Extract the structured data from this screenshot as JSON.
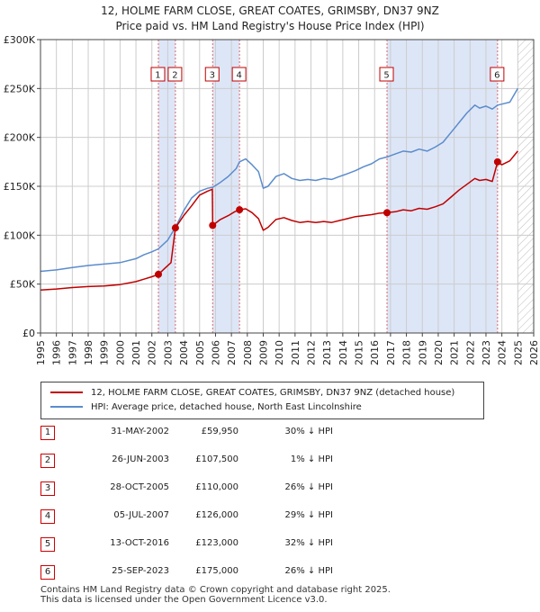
{
  "title": {
    "line1": "12, HOLME FARM CLOSE, GREAT COATES, GRIMSBY, DN37 9NZ",
    "line2": "Price paid vs. HM Land Registry's House Price Index (HPI)"
  },
  "legend": {
    "red_label": "12, HOLME FARM CLOSE, GREAT COATES, GRIMSBY, DN37 9NZ (detached house)",
    "blue_label": "HPI: Average price, detached house, North East Lincolnshire"
  },
  "colors": {
    "red": "#c00000",
    "blue": "#5b8ccc",
    "shade": "#dde6f7",
    "vline": "#e06666"
  },
  "sales": [
    {
      "num": "1",
      "date": "31-MAY-2002",
      "price": "£59,950",
      "hpi": "30% ↓ HPI"
    },
    {
      "num": "2",
      "date": "26-JUN-2003",
      "price": "£107,500",
      "hpi": "1% ↓ HPI"
    },
    {
      "num": "3",
      "date": "28-OCT-2005",
      "price": "£110,000",
      "hpi": "26% ↓ HPI"
    },
    {
      "num": "4",
      "date": "05-JUL-2007",
      "price": "£126,000",
      "hpi": "29% ↓ HPI"
    },
    {
      "num": "5",
      "date": "13-OCT-2016",
      "price": "£123,000",
      "hpi": "32% ↓ HPI"
    },
    {
      "num": "6",
      "date": "25-SEP-2023",
      "price": "£175,000",
      "hpi": "26% ↓ HPI"
    }
  ],
  "footer": {
    "line1": "Contains HM Land Registry data © Crown copyright and database right 2025.",
    "line2": "This data is licensed under the Open Government Licence v3.0."
  },
  "chart_data": {
    "type": "line",
    "xlim": [
      1995,
      2026
    ],
    "ylim": [
      0,
      300000
    ],
    "y_ticks": [
      0,
      50000,
      100000,
      150000,
      200000,
      250000,
      300000
    ],
    "y_tick_labels": [
      "£0",
      "£50K",
      "£100K",
      "£150K",
      "£200K",
      "£250K",
      "£300K"
    ],
    "x_tick_labels": [
      "1995",
      "1996",
      "1997",
      "1998",
      "1999",
      "2000",
      "2001",
      "2002",
      "2003",
      "2004",
      "2005",
      "2006",
      "2007",
      "2008",
      "2009",
      "2010",
      "2011",
      "2012",
      "2013",
      "2014",
      "2015",
      "2016",
      "2017",
      "2018",
      "2019",
      "2020",
      "2021",
      "2022",
      "2023",
      "2024",
      "2025",
      "2026"
    ],
    "grid": true,
    "shaded_periods": [
      [
        2002.41,
        2003.48
      ],
      [
        2005.82,
        2007.51
      ],
      [
        2016.78,
        2023.73
      ]
    ],
    "future_hatch_from": 2025.0,
    "sale_markers": [
      {
        "label": "1",
        "x": 2002.41,
        "y": 59950
      },
      {
        "label": "2",
        "x": 2003.48,
        "y": 107500
      },
      {
        "label": "3",
        "x": 2005.82,
        "y": 110000
      },
      {
        "label": "4",
        "x": 2007.51,
        "y": 126000
      },
      {
        "label": "5",
        "x": 2016.78,
        "y": 123000
      },
      {
        "label": "6",
        "x": 2023.73,
        "y": 175000
      }
    ],
    "series": [
      {
        "name": "HPI: Average price, detached house, North East Lincolnshire",
        "color": "#5b8ccc",
        "points": [
          [
            1995.0,
            63000
          ],
          [
            1996.0,
            64500
          ],
          [
            1997.0,
            67000
          ],
          [
            1998.0,
            69000
          ],
          [
            1999.0,
            70500
          ],
          [
            2000.0,
            72000
          ],
          [
            2001.0,
            76000
          ],
          [
            2001.5,
            80000
          ],
          [
            2002.0,
            83000
          ],
          [
            2002.41,
            86000
          ],
          [
            2003.0,
            95000
          ],
          [
            2003.48,
            108000
          ],
          [
            2004.0,
            125000
          ],
          [
            2004.5,
            138000
          ],
          [
            2005.0,
            145000
          ],
          [
            2005.5,
            148000
          ],
          [
            2005.82,
            149000
          ],
          [
            2006.3,
            154000
          ],
          [
            2006.8,
            160000
          ],
          [
            2007.3,
            168000
          ],
          [
            2007.51,
            175000
          ],
          [
            2007.9,
            178000
          ],
          [
            2008.3,
            172000
          ],
          [
            2008.7,
            165000
          ],
          [
            2009.0,
            148000
          ],
          [
            2009.3,
            150000
          ],
          [
            2009.8,
            160000
          ],
          [
            2010.3,
            163000
          ],
          [
            2010.8,
            158000
          ],
          [
            2011.3,
            156000
          ],
          [
            2011.8,
            157000
          ],
          [
            2012.3,
            156000
          ],
          [
            2012.8,
            158000
          ],
          [
            2013.3,
            157000
          ],
          [
            2013.8,
            160000
          ],
          [
            2014.3,
            163000
          ],
          [
            2014.8,
            166000
          ],
          [
            2015.3,
            170000
          ],
          [
            2015.8,
            173000
          ],
          [
            2016.3,
            178000
          ],
          [
            2016.78,
            180000
          ],
          [
            2017.3,
            183000
          ],
          [
            2017.8,
            186000
          ],
          [
            2018.3,
            185000
          ],
          [
            2018.8,
            188000
          ],
          [
            2019.3,
            186000
          ],
          [
            2019.8,
            190000
          ],
          [
            2020.3,
            195000
          ],
          [
            2020.8,
            205000
          ],
          [
            2021.3,
            215000
          ],
          [
            2021.8,
            225000
          ],
          [
            2022.3,
            233000
          ],
          [
            2022.6,
            230000
          ],
          [
            2023.0,
            232000
          ],
          [
            2023.4,
            229000
          ],
          [
            2023.73,
            233000
          ],
          [
            2024.0,
            234000
          ],
          [
            2024.5,
            236000
          ],
          [
            2025.0,
            250000
          ]
        ]
      },
      {
        "name": "12, HOLME FARM CLOSE, GREAT COATES, GRIMSBY, DN37 9NZ (detached house)",
        "color": "#c00000",
        "points": [
          [
            1995.0,
            44000
          ],
          [
            1996.0,
            45000
          ],
          [
            1997.0,
            46500
          ],
          [
            1998.0,
            47500
          ],
          [
            1999.0,
            48000
          ],
          [
            2000.0,
            49500
          ],
          [
            2001.0,
            52500
          ],
          [
            2001.5,
            55000
          ],
          [
            2002.0,
            57500
          ],
          [
            2002.41,
            59950
          ],
          [
            2002.8,
            66000
          ],
          [
            2003.2,
            72000
          ],
          [
            2003.48,
            107500
          ],
          [
            2004.0,
            120000
          ],
          [
            2004.5,
            130000
          ],
          [
            2005.0,
            141000
          ],
          [
            2005.5,
            145000
          ],
          [
            2005.8,
            147000
          ],
          [
            2005.82,
            110000
          ],
          [
            2006.3,
            116000
          ],
          [
            2006.8,
            120000
          ],
          [
            2007.2,
            124000
          ],
          [
            2007.51,
            126000
          ],
          [
            2007.9,
            127000
          ],
          [
            2008.3,
            123000
          ],
          [
            2008.7,
            117000
          ],
          [
            2009.0,
            105000
          ],
          [
            2009.3,
            108000
          ],
          [
            2009.8,
            116000
          ],
          [
            2010.3,
            118000
          ],
          [
            2010.8,
            115000
          ],
          [
            2011.3,
            113000
          ],
          [
            2011.8,
            114000
          ],
          [
            2012.3,
            113000
          ],
          [
            2012.8,
            114000
          ],
          [
            2013.3,
            113000
          ],
          [
            2013.8,
            115000
          ],
          [
            2014.3,
            117000
          ],
          [
            2014.8,
            119000
          ],
          [
            2015.3,
            120000
          ],
          [
            2015.8,
            121000
          ],
          [
            2016.3,
            122500
          ],
          [
            2016.78,
            123000
          ],
          [
            2017.3,
            124000
          ],
          [
            2017.8,
            126000
          ],
          [
            2018.3,
            125000
          ],
          [
            2018.8,
            127500
          ],
          [
            2019.3,
            126500
          ],
          [
            2019.8,
            129000
          ],
          [
            2020.3,
            132000
          ],
          [
            2020.8,
            139000
          ],
          [
            2021.3,
            146000
          ],
          [
            2021.8,
            152000
          ],
          [
            2022.3,
            158000
          ],
          [
            2022.6,
            156000
          ],
          [
            2023.0,
            157000
          ],
          [
            2023.4,
            155000
          ],
          [
            2023.73,
            175000
          ],
          [
            2024.0,
            172000
          ],
          [
            2024.5,
            176000
          ],
          [
            2025.0,
            186000
          ]
        ]
      }
    ]
  }
}
